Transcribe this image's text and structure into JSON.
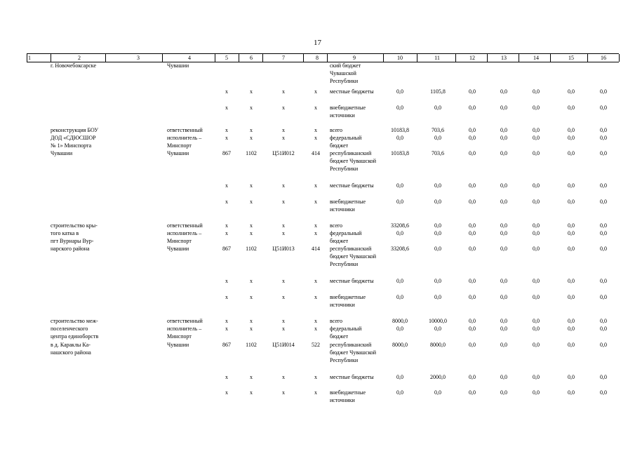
{
  "page_number": "17",
  "headers": [
    "1",
    "2",
    "3",
    "4",
    "5",
    "6",
    "7",
    "8",
    "9",
    "10",
    "11",
    "12",
    "13",
    "14",
    "15",
    "16"
  ],
  "rows": [
    {
      "c2": "г. Новочебоксарске",
      "c4": "Чувашии",
      "c9": "ский бюджет Чувашской Республики",
      "v": []
    },
    {
      "c5": "x",
      "c6": "x",
      "c7": "x",
      "c8": "x",
      "c9": "местные бюджеты",
      "v": [
        "0,0",
        "1105,8",
        "0,0",
        "0,0",
        "0,0",
        "0,0",
        "0,0"
      ]
    },
    {
      "c5": "x",
      "c6": "x",
      "c7": "x",
      "c8": "x",
      "c9": "внебюджетные источники",
      "v": [
        "0,0",
        "0,0",
        "0,0",
        "0,0",
        "0,0",
        "0,0",
        "0,0"
      ]
    },
    {
      "c2": "реконструкция БОУ",
      "c4": "ответственный",
      "c5": "x",
      "c6": "x",
      "c7": "x",
      "c8": "x",
      "c9": "всего",
      "v": [
        "10183,8",
        "703,6",
        "0,0",
        "0,0",
        "0,0",
        "0,0",
        "0,0"
      ]
    },
    {
      "c2": "ДОД «СДЮСШОР",
      "c4": "исполнитель –",
      "c5": "x",
      "c6": "x",
      "c7": "x",
      "c8": "x",
      "c9": "федеральный бюджет",
      "v": [
        "0,0",
        "0,0",
        "0,0",
        "0,0",
        "0,0",
        "0,0",
        "0,0"
      ]
    },
    {
      "c2": "№ 1» Минспорта",
      "c4": "Минспорт",
      "c9": "",
      "v": []
    },
    {
      "c2": "Чувашии",
      "c4": "Чувашии",
      "c5": "867",
      "c6": "1102",
      "c7": "Ц51И012",
      "c8": "414",
      "c9": "республиканский бюджет Чувашской Республики",
      "v": [
        "10183,8",
        "703,6",
        "0,0",
        "0,0",
        "0,0",
        "0,0",
        "0,0"
      ]
    },
    {
      "c5": "x",
      "c6": "x",
      "c7": "x",
      "c8": "x",
      "c9": "местные бюджеты",
      "v": [
        "0,0",
        "0,0",
        "0,0",
        "0,0",
        "0,0",
        "0,0",
        "0,0"
      ]
    },
    {
      "c5": "x",
      "c6": "x",
      "c7": "x",
      "c8": "x",
      "c9": "внебюджетные источники",
      "v": [
        "0,0",
        "0,0",
        "0,0",
        "0,0",
        "0,0",
        "0,0",
        "0,0"
      ]
    },
    {
      "c2": "строительство кры-",
      "c4": "ответственный",
      "c5": "x",
      "c6": "x",
      "c7": "x",
      "c8": "x",
      "c9": "всего",
      "v": [
        "33208,6",
        "0,0",
        "0,0",
        "0,0",
        "0,0",
        "0,0",
        "0,0"
      ]
    },
    {
      "c2": "того катка в",
      "c4": "исполнитель –",
      "c5": "x",
      "c6": "x",
      "c7": "x",
      "c8": "x",
      "c9": "федеральный бюджет",
      "v": [
        "0,0",
        "0,0",
        "0,0",
        "0,0",
        "0,0",
        "0,0",
        "0,0"
      ]
    },
    {
      "c2": "пгт Вурнары Вур-",
      "c4": "Минспорт",
      "c9": "",
      "v": []
    },
    {
      "c2": "нарского района",
      "c4": "Чувашии",
      "c5": "867",
      "c6": "1102",
      "c7": "Ц51И013",
      "c8": "414",
      "c9": "республиканский бюджет Чувашской Республики",
      "v": [
        "33208,6",
        "0,0",
        "0,0",
        "0,0",
        "0,0",
        "0,0",
        "0,0"
      ]
    },
    {
      "c5": "x",
      "c6": "x",
      "c7": "x",
      "c8": "x",
      "c9": "местные бюджеты",
      "v": [
        "0,0",
        "0,0",
        "0,0",
        "0,0",
        "0,0",
        "0,0",
        "0,0"
      ]
    },
    {
      "c5": "x",
      "c6": "x",
      "c7": "x",
      "c8": "x",
      "c9": "внебюджетные источники",
      "v": [
        "0,0",
        "0,0",
        "0,0",
        "0,0",
        "0,0",
        "0,0",
        "0,0"
      ]
    },
    {
      "c2": "строительство меж-",
      "c4": "ответственный",
      "c5": "x",
      "c6": "x",
      "c7": "x",
      "c8": "x",
      "c9": "всего",
      "v": [
        "8000,0",
        "10000,0",
        "0,0",
        "0,0",
        "0,0",
        "0,0",
        "0,0"
      ]
    },
    {
      "c2": "поселенческого",
      "c4": "исполнитель –",
      "c5": "x",
      "c6": "x",
      "c7": "x",
      "c8": "x",
      "c9": "федеральный бюджет",
      "v": [
        "0,0",
        "0,0",
        "0,0",
        "0,0",
        "0,0",
        "0,0",
        "0,0"
      ]
    },
    {
      "c2": "центра единоборств",
      "c4": "Минспорт",
      "c9": "",
      "v": []
    },
    {
      "c2": "в д. Караклы Ка-",
      "c4": "Чувашии",
      "c5": "867",
      "c6": "1102",
      "c7": "Ц51И014",
      "c8": "522",
      "c9": "республиканский бюджет Чувашской Республики",
      "v": [
        "8000,0",
        "8000,0",
        "0,0",
        "0,0",
        "0,0",
        "0,0",
        "0,0"
      ]
    },
    {
      "c2": "нашского района",
      "c9": "",
      "v": []
    },
    {
      "c5": "x",
      "c6": "x",
      "c7": "x",
      "c8": "x",
      "c9": "местные бюджеты",
      "v": [
        "0,0",
        "2000,0",
        "0,0",
        "0,0",
        "0,0",
        "0,0",
        "0,0"
      ]
    },
    {
      "c5": "x",
      "c6": "x",
      "c7": "x",
      "c8": "x",
      "c9": "внебюджетные источники",
      "v": [
        "0,0",
        "0,0",
        "0,0",
        "0,0",
        "0,0",
        "0,0",
        "0,0"
      ]
    }
  ]
}
